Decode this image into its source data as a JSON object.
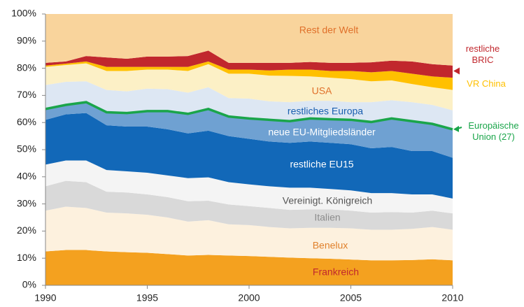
{
  "chart_data": {
    "type": "area",
    "x": [
      1990,
      1991,
      1992,
      1993,
      1994,
      1995,
      1996,
      1997,
      1998,
      1999,
      2000,
      2001,
      2002,
      2003,
      2004,
      2005,
      2006,
      2007,
      2008,
      2009,
      2010
    ],
    "xlim": [
      1990,
      2010
    ],
    "xticks": [
      1990,
      1995,
      2000,
      2005,
      2010
    ],
    "ylim": [
      0,
      100
    ],
    "yticks": [
      {
        "value": 0,
        "label": "0%"
      },
      {
        "value": 10,
        "label": "10%"
      },
      {
        "value": 20,
        "label": "20%"
      },
      {
        "value": 30,
        "label": "30%"
      },
      {
        "value": 40,
        "label": "40%"
      },
      {
        "value": 50,
        "label": "50%"
      },
      {
        "value": 60,
        "label": "60%"
      },
      {
        "value": 70,
        "label": "70%"
      },
      {
        "value": 80,
        "label": "80%"
      },
      {
        "value": 90,
        "label": "90%"
      },
      {
        "value": 100,
        "label": "100%"
      }
    ],
    "stacked": true,
    "series": [
      {
        "name": "Frankreich",
        "color": "#f4a11f",
        "values": [
          12.5,
          13,
          13,
          12.5,
          12.2,
          12,
          11.5,
          11,
          11.2,
          11,
          10.8,
          10.5,
          10.2,
          10,
          9.8,
          9.5,
          9.2,
          9.2,
          9.3,
          9.6,
          9.2
        ]
      },
      {
        "name": "Benelux",
        "color": "#fdf1de",
        "values": [
          15,
          16,
          15.5,
          14.3,
          14.3,
          14,
          13.5,
          12.5,
          12.8,
          11.5,
          11.4,
          11,
          10.8,
          11.2,
          11.4,
          11.5,
          11.3,
          11.3,
          11.5,
          11.9,
          11.3
        ]
      },
      {
        "name": "Italien",
        "color": "#d9d9d9",
        "values": [
          9,
          9.5,
          9.5,
          7.7,
          7.7,
          7.5,
          7.5,
          7.5,
          7.2,
          7.3,
          7,
          7,
          6.8,
          6.8,
          6.8,
          6.5,
          6.3,
          6.5,
          6,
          6,
          6
        ]
      },
      {
        "name": "Vereinigt. Königreich",
        "color": "#f4f4f4",
        "values": [
          8,
          7.5,
          8,
          8,
          7.8,
          8,
          8,
          8.5,
          8.6,
          8.2,
          8,
          8,
          8.2,
          8,
          7.5,
          7.5,
          7.2,
          7,
          6.7,
          6,
          5.5
        ]
      },
      {
        "name": "restliche EU15",
        "color": "#1268b8",
        "values": [
          16.5,
          17,
          17.5,
          16.5,
          16.5,
          17,
          17,
          16.5,
          17.2,
          17,
          16.8,
          16.5,
          16.5,
          17,
          17,
          17,
          16.5,
          17,
          16,
          16,
          15
        ]
      },
      {
        "name": "neue EU-Mitgliedsländer",
        "color": "#6fa1d2",
        "values": [
          4,
          3.5,
          4,
          4.8,
          5,
          5.7,
          6.7,
          7.2,
          8,
          7.2,
          7.5,
          8,
          8,
          8.5,
          8.7,
          9,
          9.7,
          10.5,
          11,
          10,
          10.5
        ]
      },
      {
        "name": "restliches Europa",
        "color": "#dde7f3",
        "values": [
          8.8,
          8.5,
          7.7,
          8.2,
          8,
          8.3,
          8.1,
          7.8,
          8,
          6.8,
          7.3,
          6.8,
          7,
          6.5,
          6.8,
          6.5,
          7.3,
          6.7,
          7,
          7,
          7
        ]
      },
      {
        "name": "USA",
        "color": "#fcf0c6",
        "values": [
          6.7,
          6.2,
          6.6,
          7,
          7.5,
          7,
          7.2,
          8,
          8.5,
          9,
          9.2,
          9.5,
          9.7,
          9,
          8.5,
          8.5,
          7.7,
          7.3,
          6.7,
          6.5,
          7.5
        ]
      },
      {
        "name": "VR China",
        "color": "#ffc000",
        "values": [
          0.5,
          0.5,
          0.7,
          1.5,
          1.5,
          1,
          1,
          1.5,
          1,
          1.5,
          1.5,
          1.9,
          2.3,
          2.5,
          2.5,
          3,
          3.3,
          3.5,
          3.8,
          4,
          4.5
        ]
      },
      {
        "name": "restliche BRIC",
        "color": "#c1272d",
        "values": [
          1,
          0.8,
          2,
          3.5,
          3,
          3.8,
          3.8,
          4,
          4,
          2.5,
          2.5,
          2.8,
          2.5,
          2.8,
          3,
          3,
          3.7,
          3.8,
          4.5,
          4.5,
          4.5
        ]
      },
      {
        "name": "Rest der Welt",
        "color": "#f9d49c",
        "values": [
          18,
          17.5,
          15.5,
          16,
          16.5,
          15.7,
          15.7,
          15.5,
          13.5,
          18,
          18,
          18,
          18,
          17.7,
          18,
          18,
          17.8,
          17.2,
          17.5,
          18.5,
          19
        ]
      },
      {
        "name": "Europäische Union (27)",
        "type": "line",
        "color": "#1aa54a",
        "values": [
          65,
          66.5,
          67.5,
          63.8,
          63.5,
          64.2,
          64.2,
          63.2,
          65,
          62.2,
          61.5,
          61,
          60.5,
          61.5,
          61.2,
          61,
          60.2,
          61.5,
          60.5,
          59.5,
          57.5
        ]
      }
    ]
  }
}
